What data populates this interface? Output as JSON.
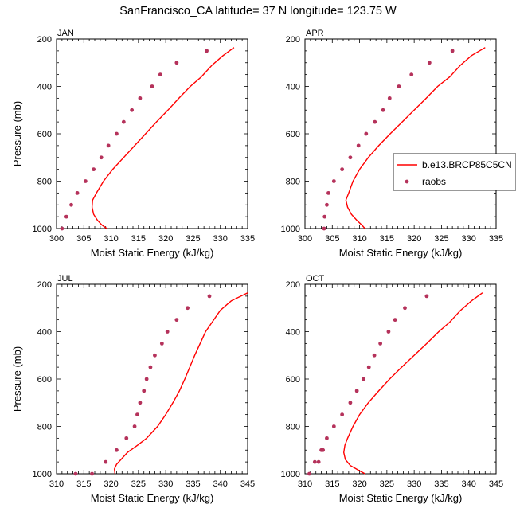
{
  "figure": {
    "title": "SanFrancisco_CA  latitude= 37 N longitude= 123.75 W"
  },
  "legend": {
    "placement": "right, between top-right and bottom-right panels",
    "entries": [
      {
        "label": "b.e13.BRCP85C5CN",
        "kind": "line",
        "color": "#ff0000"
      },
      {
        "label": "raobs",
        "kind": "marker",
        "color": "#b5325b"
      }
    ]
  },
  "chart_data": [
    {
      "type": "line",
      "panel_label": "JAN",
      "xlabel": "Moist Static Energy (kJ/kg)",
      "ylabel": "Pressure (mb)",
      "xlim": [
        300,
        335
      ],
      "ylim": [
        1000,
        200
      ],
      "y_reversed": true,
      "xticks": [
        300,
        305,
        310,
        315,
        320,
        325,
        330,
        335
      ],
      "xtick_labels": [
        "300",
        "305",
        "310",
        "315",
        "320",
        "325",
        "330",
        "335"
      ],
      "yticks": [
        200,
        400,
        600,
        800,
        1000
      ],
      "ytick_labels": [
        "200",
        "400",
        "600",
        "800",
        "1000"
      ],
      "series": [
        {
          "name": "b.e13.BRCP85C5CN",
          "style": "line",
          "color": "#ff0000",
          "x": [
            332.5,
            330.5,
            328.5,
            326.5,
            324.5,
            322.4,
            320.4,
            318.3,
            316.3,
            314.3,
            312.3,
            310.3,
            308.6,
            307.3,
            306.6,
            306.5,
            306.8,
            307.5,
            308.3,
            309.2
          ],
          "y": [
            236,
            270,
            310,
            360,
            400,
            450,
            500,
            550,
            600,
            650,
            700,
            750,
            800,
            850,
            880,
            910,
            940,
            965,
            985,
            1000
          ]
        },
        {
          "name": "raobs",
          "style": "markers",
          "color": "#b5325b",
          "x": [
            327.5,
            322.0,
            319.0,
            317.5,
            315.3,
            313.8,
            312.3,
            311.0,
            309.5,
            308.2,
            306.8,
            305.3,
            303.8,
            302.7,
            301.8,
            301.0
          ],
          "y": [
            250,
            300,
            350,
            400,
            450,
            500,
            550,
            600,
            650,
            700,
            750,
            800,
            850,
            900,
            950,
            1000
          ]
        }
      ]
    },
    {
      "type": "line",
      "panel_label": "APR",
      "xlabel": "Moist Static Energy (kJ/kg)",
      "ylabel": "",
      "xlim": [
        300,
        335
      ],
      "ylim": [
        1000,
        200
      ],
      "y_reversed": true,
      "xticks": [
        300,
        305,
        310,
        315,
        320,
        325,
        330,
        335
      ],
      "xtick_labels": [
        "300",
        "305",
        "310",
        "315",
        "320",
        "325",
        "330",
        "335"
      ],
      "yticks": [
        200,
        400,
        600,
        800,
        1000
      ],
      "ytick_labels": [
        "200",
        "400",
        "600",
        "800",
        "1000"
      ],
      "series": [
        {
          "name": "b.e13.BRCP85C5CN",
          "style": "line",
          "color": "#ff0000",
          "x": [
            333.0,
            330.5,
            328.5,
            326.5,
            324.3,
            322.2,
            320.0,
            317.8,
            315.6,
            313.5,
            311.6,
            310.0,
            308.8,
            308.0,
            307.5,
            307.8,
            308.5,
            309.5,
            310.4,
            311.0
          ],
          "y": [
            236,
            270,
            310,
            360,
            400,
            450,
            500,
            550,
            600,
            650,
            700,
            750,
            800,
            850,
            880,
            910,
            940,
            965,
            985,
            1000
          ]
        },
        {
          "name": "raobs",
          "style": "markers",
          "color": "#b5325b",
          "x": [
            327.0,
            322.8,
            319.5,
            317.2,
            315.5,
            314.3,
            312.8,
            311.2,
            309.8,
            308.3,
            306.8,
            305.3,
            304.3,
            304.0,
            303.6,
            303.5
          ],
          "y": [
            250,
            300,
            350,
            400,
            450,
            500,
            550,
            600,
            650,
            700,
            750,
            800,
            850,
            900,
            950,
            1000
          ]
        }
      ]
    },
    {
      "type": "line",
      "panel_label": "JUL",
      "xlabel": "Moist Static Energy (kJ/kg)",
      "ylabel": "Pressure (mb)",
      "xlim": [
        310,
        345
      ],
      "ylim": [
        1000,
        200
      ],
      "y_reversed": true,
      "xticks": [
        310,
        315,
        320,
        325,
        330,
        335,
        340,
        345
      ],
      "xtick_labels": [
        "310",
        "315",
        "320",
        "325",
        "330",
        "335",
        "340",
        "345"
      ],
      "yticks": [
        200,
        400,
        600,
        800,
        1000
      ],
      "ytick_labels": [
        "200",
        "400",
        "600",
        "800",
        "1000"
      ],
      "series": [
        {
          "name": "b.e13.BRCP85C5CN",
          "style": "line",
          "color": "#ff0000",
          "x": [
            345.0,
            342.0,
            340.0,
            338.5,
            337.3,
            336.3,
            335.3,
            334.4,
            333.5,
            332.5,
            331.3,
            330.0,
            328.5,
            326.5,
            324.8,
            323.0,
            321.8,
            321.0,
            320.6,
            320.7
          ],
          "y": [
            236,
            270,
            310,
            360,
            400,
            450,
            500,
            550,
            600,
            650,
            700,
            750,
            800,
            850,
            880,
            910,
            940,
            960,
            980,
            1000
          ]
        },
        {
          "name": "raobs",
          "style": "markers",
          "color": "#b5325b",
          "x": [
            338.0,
            334.0,
            332.0,
            330.3,
            329.3,
            328.0,
            327.2,
            326.5,
            326.0,
            325.3,
            324.8,
            324.3,
            322.8,
            321.0,
            319.0,
            316.5,
            313.5
          ],
          "y": [
            250,
            300,
            350,
            400,
            450,
            500,
            550,
            600,
            650,
            700,
            750,
            800,
            850,
            900,
            950,
            1000,
            1000
          ]
        }
      ]
    },
    {
      "type": "line",
      "panel_label": "OCT",
      "xlabel": "Moist Static Energy (kJ/kg)",
      "ylabel": "",
      "xlim": [
        310,
        345
      ],
      "ylim": [
        1000,
        200
      ],
      "y_reversed": true,
      "xticks": [
        310,
        315,
        320,
        325,
        330,
        335,
        340,
        345
      ],
      "xtick_labels": [
        "310",
        "315",
        "320",
        "325",
        "330",
        "335",
        "340",
        "345"
      ],
      "yticks": [
        200,
        400,
        600,
        800,
        1000
      ],
      "ytick_labels": [
        "200",
        "400",
        "600",
        "800",
        "1000"
      ],
      "series": [
        {
          "name": "b.e13.BRCP85C5CN",
          "style": "line",
          "color": "#ff0000",
          "x": [
            342.5,
            340.5,
            338.5,
            336.5,
            334.5,
            332.3,
            330.0,
            327.7,
            325.5,
            323.5,
            321.6,
            320.0,
            318.8,
            317.8,
            317.3,
            317.1,
            317.4,
            318.3,
            319.8,
            321.0
          ],
          "y": [
            236,
            270,
            310,
            360,
            400,
            450,
            500,
            550,
            600,
            650,
            700,
            750,
            800,
            850,
            880,
            910,
            940,
            965,
            985,
            1000
          ]
        },
        {
          "name": "raobs",
          "style": "markers",
          "color": "#b5325b",
          "x": [
            332.3,
            328.3,
            326.5,
            325.3,
            323.8,
            322.7,
            321.7,
            320.7,
            319.5,
            318.3,
            316.8,
            315.3,
            314.0,
            313.3,
            313.0,
            312.5,
            311.8,
            310.8
          ],
          "y": [
            250,
            300,
            350,
            400,
            450,
            500,
            550,
            600,
            650,
            700,
            750,
            800,
            850,
            900,
            900,
            950,
            950,
            1000
          ]
        }
      ]
    }
  ]
}
